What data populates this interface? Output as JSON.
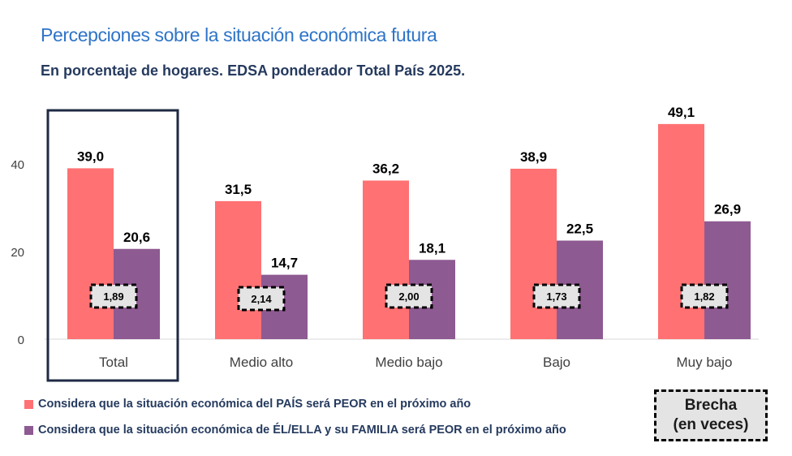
{
  "header": {
    "title": "Percepciones sobre la situación económica futura",
    "subtitle": "En porcentaje de hogares. EDSA ponderador Total País 2025."
  },
  "chart_data": {
    "type": "bar",
    "categories": [
      "Total",
      "Medio alto",
      "Medio bajo",
      "Bajo",
      "Muy bajo"
    ],
    "series": [
      {
        "name": "Considera que la situación económica del PAÍS será PEOR en el próximo año",
        "color": "#FF7173",
        "values": [
          39.0,
          31.5,
          36.2,
          38.9,
          49.1
        ],
        "labels": [
          "39,0",
          "31,5",
          "36,2",
          "38,9",
          "49,1"
        ]
      },
      {
        "name": "Considera que la situación económica de ÉL/ELLA y su FAMILIA  será PEOR en el próximo año",
        "color": "#8E5A92",
        "values": [
          20.6,
          14.7,
          18.1,
          22.5,
          26.9
        ],
        "labels": [
          "20,6",
          "14,7",
          "18,1",
          "22,5",
          "26,9"
        ]
      }
    ],
    "brecha": {
      "label_line1": "Brecha",
      "label_line2": "(en veces)",
      "values": [
        "1,89",
        "2,14",
        "2,00",
        "1,73",
        "1,82"
      ]
    },
    "y_ticks": [
      "0",
      "20",
      "40"
    ],
    "y_tick_values": [
      0,
      20,
      40
    ],
    "ylim": [
      0,
      50
    ],
    "highlighted_category": "Total",
    "legend_position": "bottom-left",
    "grid": false
  }
}
